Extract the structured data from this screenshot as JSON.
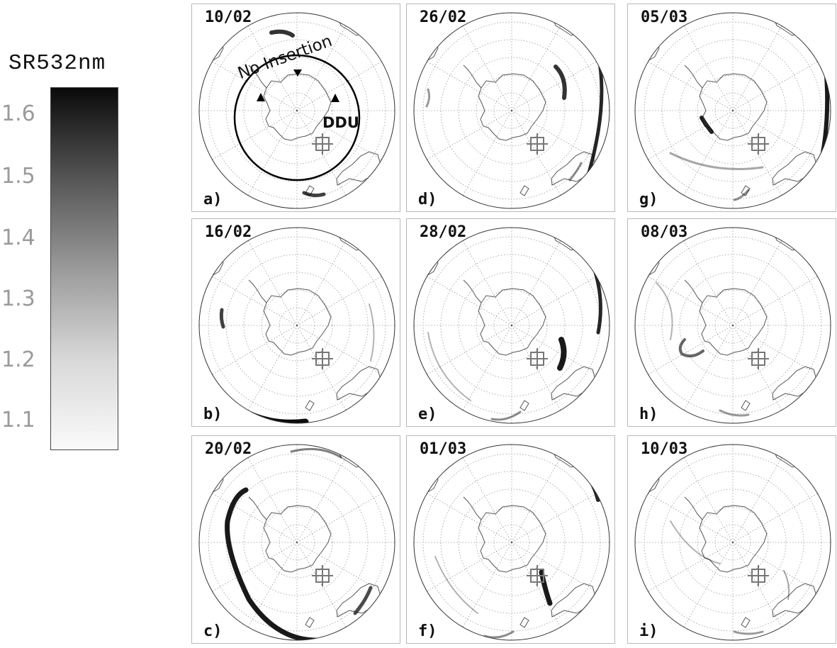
{
  "legend": {
    "title": "SR532nm",
    "ticks": [
      "1.6",
      "1.5",
      "1.4",
      "1.3",
      "1.2",
      "1.1"
    ],
    "gradient_colors": [
      "#fafafa",
      "#0a0a0a"
    ]
  },
  "annotations": {
    "no_insertion": "No Insertion",
    "station": "DDU"
  },
  "panels": [
    {
      "label": "a)",
      "date": "10/02"
    },
    {
      "label": "b)",
      "date": "16/02"
    },
    {
      "label": "c)",
      "date": "20/02"
    },
    {
      "label": "d)",
      "date": "26/02"
    },
    {
      "label": "e)",
      "date": "28/02"
    },
    {
      "label": "f)",
      "date": "01/03"
    },
    {
      "label": "g)",
      "date": "05/03"
    },
    {
      "label": "h)",
      "date": "08/03"
    },
    {
      "label": "i)",
      "date": "10/03"
    }
  ]
}
